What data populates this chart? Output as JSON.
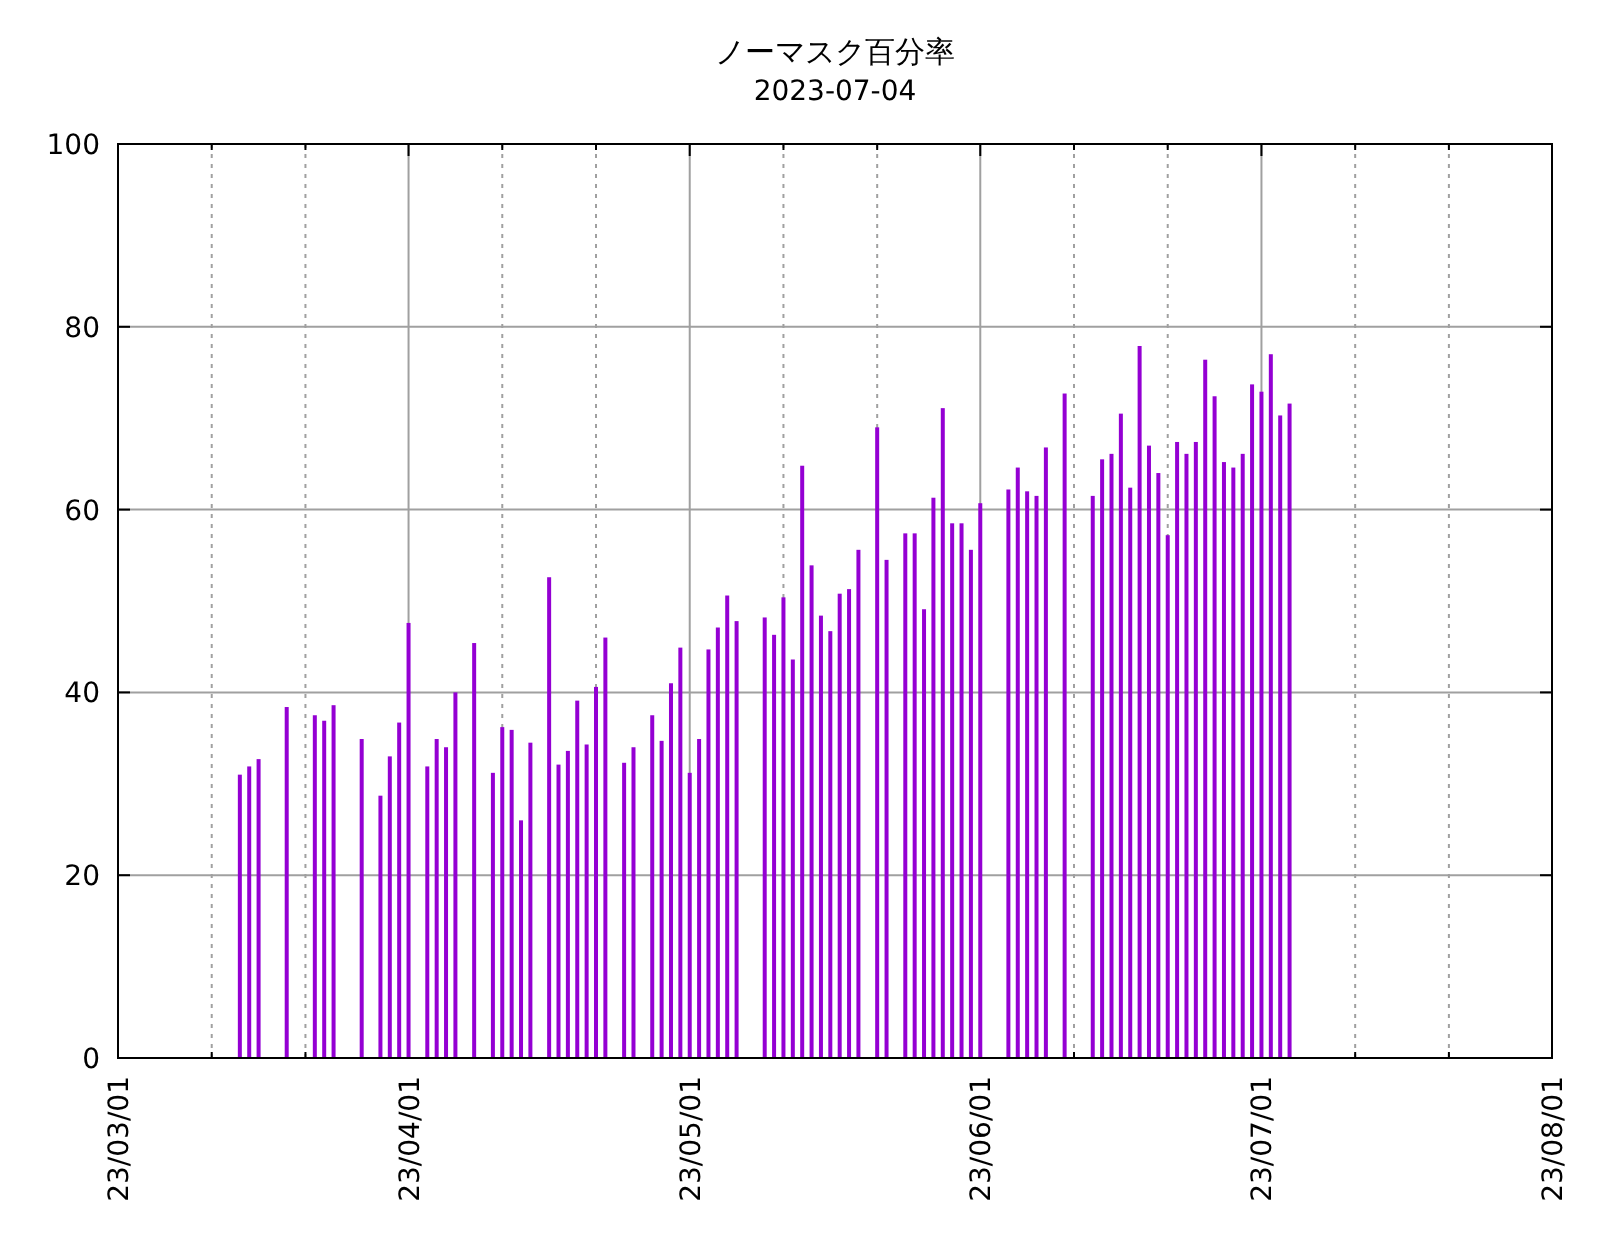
{
  "chart_data": {
    "type": "bar",
    "title": "ノーマスク百分率",
    "subtitle": "2023-07-04",
    "x": [
      "2023-03-14",
      "2023-03-15",
      "2023-03-16",
      "2023-03-19",
      "2023-03-22",
      "2023-03-23",
      "2023-03-24",
      "2023-03-27",
      "2023-03-29",
      "2023-03-30",
      "2023-03-31",
      "2023-04-01",
      "2023-04-03",
      "2023-04-04",
      "2023-04-05",
      "2023-04-06",
      "2023-04-08",
      "2023-04-10",
      "2023-04-11",
      "2023-04-12",
      "2023-04-13",
      "2023-04-14",
      "2023-04-16",
      "2023-04-17",
      "2023-04-18",
      "2023-04-19",
      "2023-04-20",
      "2023-04-21",
      "2023-04-22",
      "2023-04-24",
      "2023-04-25",
      "2023-04-27",
      "2023-04-28",
      "2023-04-29",
      "2023-04-30",
      "2023-05-01",
      "2023-05-02",
      "2023-05-03",
      "2023-05-04",
      "2023-05-05",
      "2023-05-06",
      "2023-05-09",
      "2023-05-10",
      "2023-05-11",
      "2023-05-12",
      "2023-05-13",
      "2023-05-14",
      "2023-05-15",
      "2023-05-16",
      "2023-05-17",
      "2023-05-18",
      "2023-05-19",
      "2023-05-21",
      "2023-05-22",
      "2023-05-24",
      "2023-05-25",
      "2023-05-26",
      "2023-05-27",
      "2023-05-28",
      "2023-05-29",
      "2023-05-30",
      "2023-05-31",
      "2023-06-01",
      "2023-06-04",
      "2023-06-05",
      "2023-06-06",
      "2023-06-07",
      "2023-06-08",
      "2023-06-10",
      "2023-06-13",
      "2023-06-14",
      "2023-06-15",
      "2023-06-16",
      "2023-06-17",
      "2023-06-18",
      "2023-06-19",
      "2023-06-20",
      "2023-06-21",
      "2023-06-22",
      "2023-06-23",
      "2023-06-24",
      "2023-06-25",
      "2023-06-26",
      "2023-06-27",
      "2023-06-28",
      "2023-06-29",
      "2023-06-30",
      "2023-07-01",
      "2023-07-02",
      "2023-07-03",
      "2023-07-04"
    ],
    "values": [
      31.0,
      31.9,
      32.7,
      38.4,
      37.5,
      36.9,
      38.6,
      34.9,
      28.7,
      33.0,
      36.7,
      47.6,
      31.9,
      34.9,
      34.0,
      40.0,
      45.4,
      31.2,
      36.2,
      35.9,
      26.0,
      34.5,
      52.6,
      32.1,
      33.6,
      39.1,
      34.3,
      40.6,
      46.0,
      32.3,
      34.0,
      37.5,
      34.7,
      41.0,
      44.9,
      31.2,
      34.9,
      44.7,
      47.1,
      50.6,
      47.8,
      48.2,
      46.3,
      50.4,
      43.6,
      64.8,
      53.9,
      48.4,
      46.7,
      50.8,
      51.3,
      55.6,
      69.0,
      54.5,
      57.4,
      57.4,
      49.1,
      61.3,
      71.1,
      58.5,
      58.5,
      55.6,
      60.7,
      62.2,
      64.6,
      62.0,
      61.5,
      66.8,
      72.7,
      61.5,
      65.5,
      66.1,
      70.5,
      62.4,
      77.9,
      67.0,
      64.0,
      57.2,
      67.4,
      66.1,
      67.4,
      76.4,
      72.4,
      65.2,
      64.6,
      66.1,
      73.7,
      72.9,
      77.0,
      70.3,
      71.6
    ],
    "color": "#9400d3",
    "xlim": [
      "2023-03-01",
      "2023-08-01"
    ],
    "xticks": [
      {
        "value": "2023-03-01",
        "label": "23/03/01"
      },
      {
        "value": "2023-03-11",
        "label": null
      },
      {
        "value": "2023-03-21",
        "label": null
      },
      {
        "value": "2023-04-01",
        "label": "23/04/01"
      },
      {
        "value": "2023-04-11",
        "label": null
      },
      {
        "value": "2023-04-21",
        "label": null
      },
      {
        "value": "2023-05-01",
        "label": "23/05/01"
      },
      {
        "value": "2023-05-11",
        "label": null
      },
      {
        "value": "2023-05-21",
        "label": null
      },
      {
        "value": "2023-06-01",
        "label": "23/06/01"
      },
      {
        "value": "2023-06-11",
        "label": null
      },
      {
        "value": "2023-06-21",
        "label": null
      },
      {
        "value": "2023-07-01",
        "label": "23/07/01"
      },
      {
        "value": "2023-07-11",
        "label": null
      },
      {
        "value": "2023-07-21",
        "label": null
      },
      {
        "value": "2023-08-01",
        "label": "23/08/01"
      }
    ],
    "ylim": [
      0,
      100
    ],
    "yticks": [
      0,
      20,
      40,
      60,
      80,
      100
    ],
    "grid": true
  }
}
